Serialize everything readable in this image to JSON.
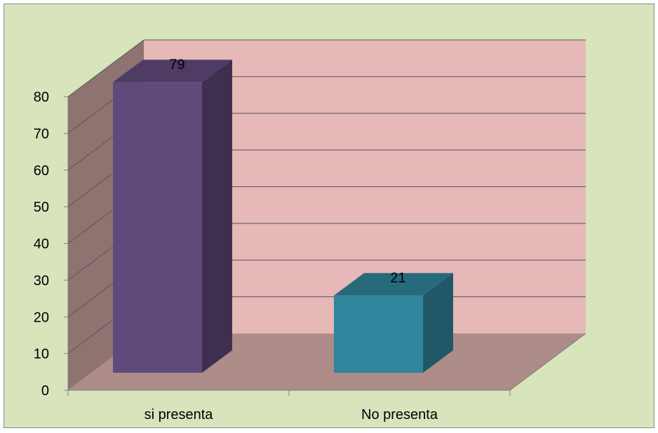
{
  "chart_data": {
    "type": "bar",
    "style": "3d-column",
    "categories": [
      "si presenta",
      "No presenta"
    ],
    "values": [
      79,
      21
    ],
    "data_labels": [
      "79",
      "21"
    ],
    "yticks": [
      0,
      10,
      20,
      30,
      40,
      50,
      60,
      70,
      80
    ],
    "ylim": [
      0,
      80
    ],
    "grid": true,
    "legend": "none",
    "colors": {
      "chart_area": "#d8e4bc",
      "back_wall": "#e6b8b7",
      "side_wall": "#8f7371",
      "floor": "#ad8c89",
      "gridline": "#555555",
      "bars": [
        {
          "front": "#604a7b",
          "side": "#3f2f4f",
          "top": "#4e3c65"
        },
        {
          "front": "#31859c",
          "side": "#205867",
          "top": "#266a7c"
        }
      ]
    }
  }
}
